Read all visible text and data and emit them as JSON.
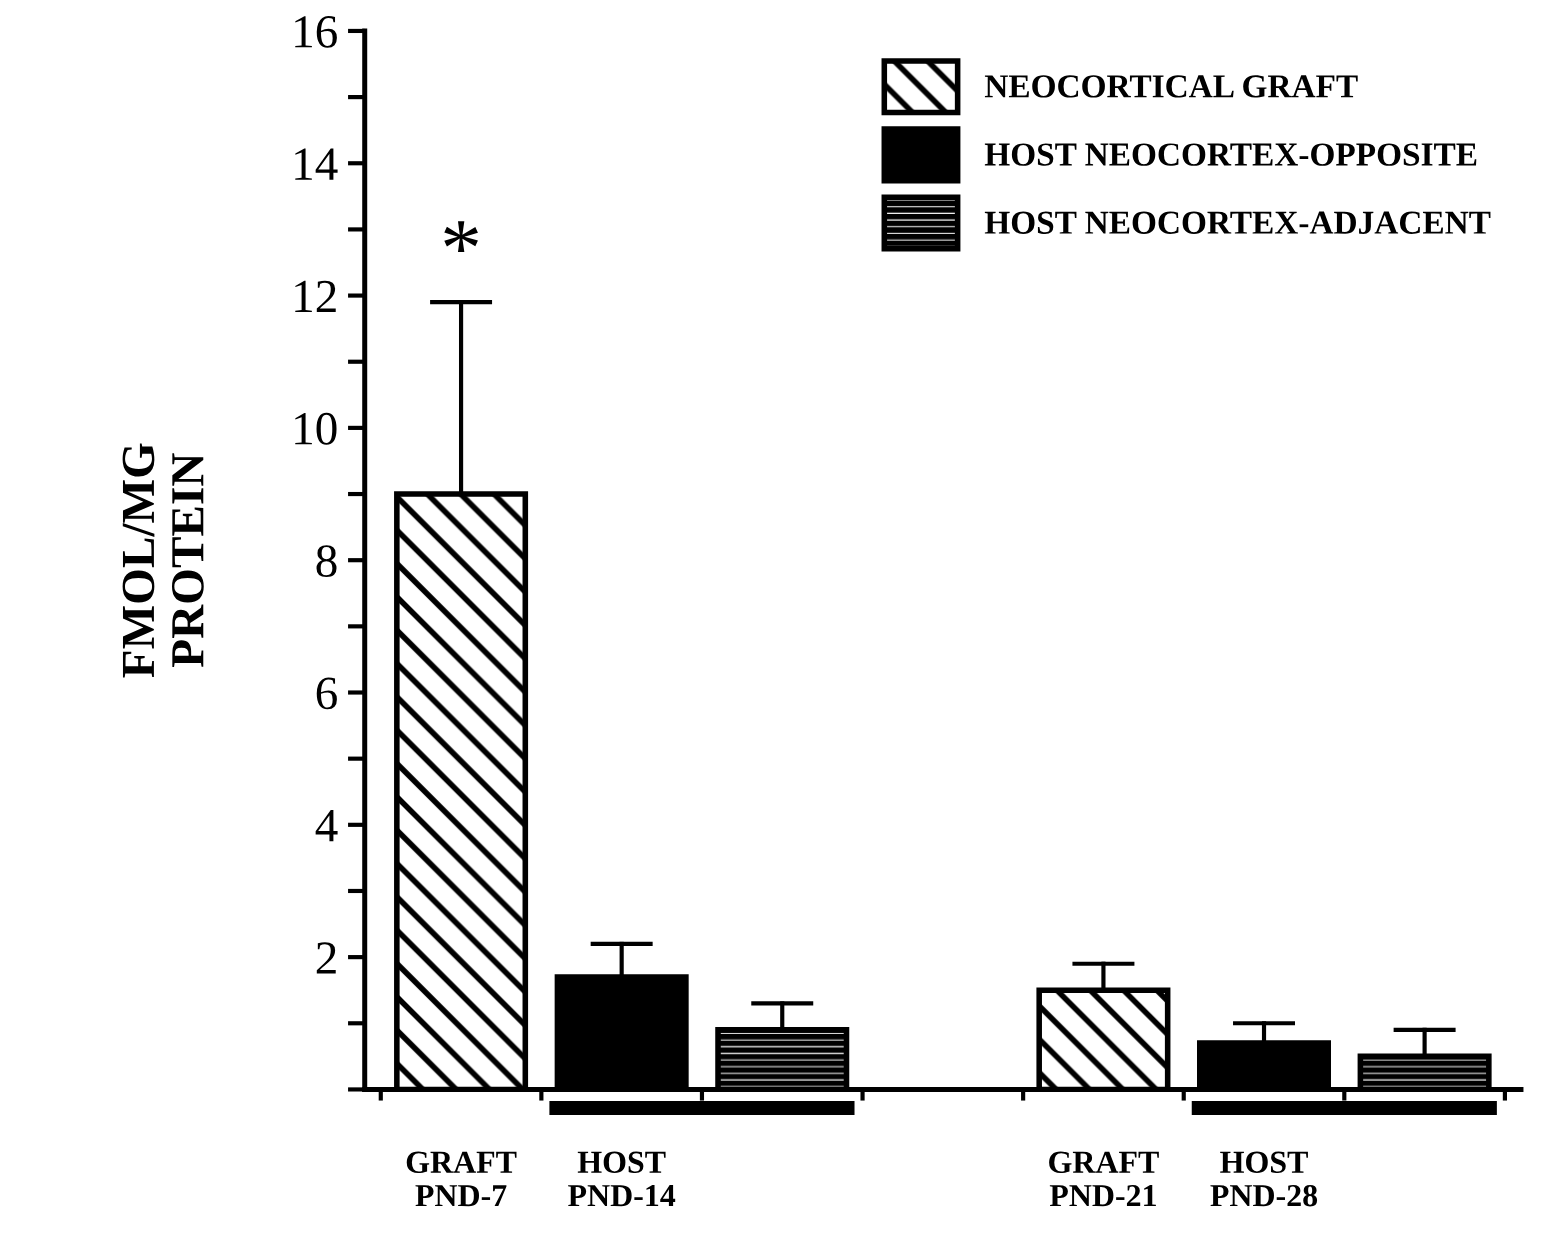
{
  "chart_data": {
    "type": "bar",
    "ylabel": "FMOL/MG\nPROTEIN",
    "categories": [
      "GRAFT\nPND-7",
      "HOST\nPND-14",
      null,
      null,
      "GRAFT\nPND-21",
      "HOST\nPND-28",
      null
    ],
    "series": [
      {
        "name": "NEOCORTICAL GRAFT",
        "color": "#000000",
        "values": [
          9.0,
          null,
          null,
          null,
          1.5,
          null,
          null
        ],
        "errors": [
          [
            9.0,
            11.9
          ],
          null,
          null,
          null,
          [
            1.5,
            1.9
          ],
          null,
          null
        ]
      },
      {
        "name": "HOST NEOCORTEX-OPPOSITE",
        "color": "#000000",
        "values": [
          null,
          1.7,
          null,
          null,
          null,
          0.7,
          null
        ],
        "errors": [
          null,
          [
            1.7,
            2.2
          ],
          null,
          null,
          null,
          [
            0.7,
            1.0
          ],
          null
        ]
      },
      {
        "name": "HOST NEOCORTEX-ADJACENT",
        "color": "#000000",
        "values": [
          null,
          null,
          0.9,
          null,
          null,
          null,
          0.5
        ],
        "errors": [
          null,
          null,
          [
            0.9,
            1.3
          ],
          null,
          null,
          null,
          [
            0.5,
            0.9
          ]
        ]
      }
    ],
    "ylim": [
      0,
      16
    ],
    "yticks": [
      {
        "value": 0,
        "label": null
      },
      {
        "value": 1,
        "label": null
      },
      2,
      {
        "value": 3,
        "label": null
      },
      4,
      {
        "value": 5,
        "label": null
      },
      6,
      {
        "value": 7,
        "label": null
      },
      8,
      {
        "value": 9,
        "label": null
      },
      10,
      {
        "value": 11,
        "label": null
      },
      12,
      {
        "value": 13,
        "label": null
      },
      14,
      {
        "value": 15,
        "label": null
      },
      16
    ],
    "annotations": [
      "*"
    ],
    "legend": "top right",
    "grid": false
  }
}
